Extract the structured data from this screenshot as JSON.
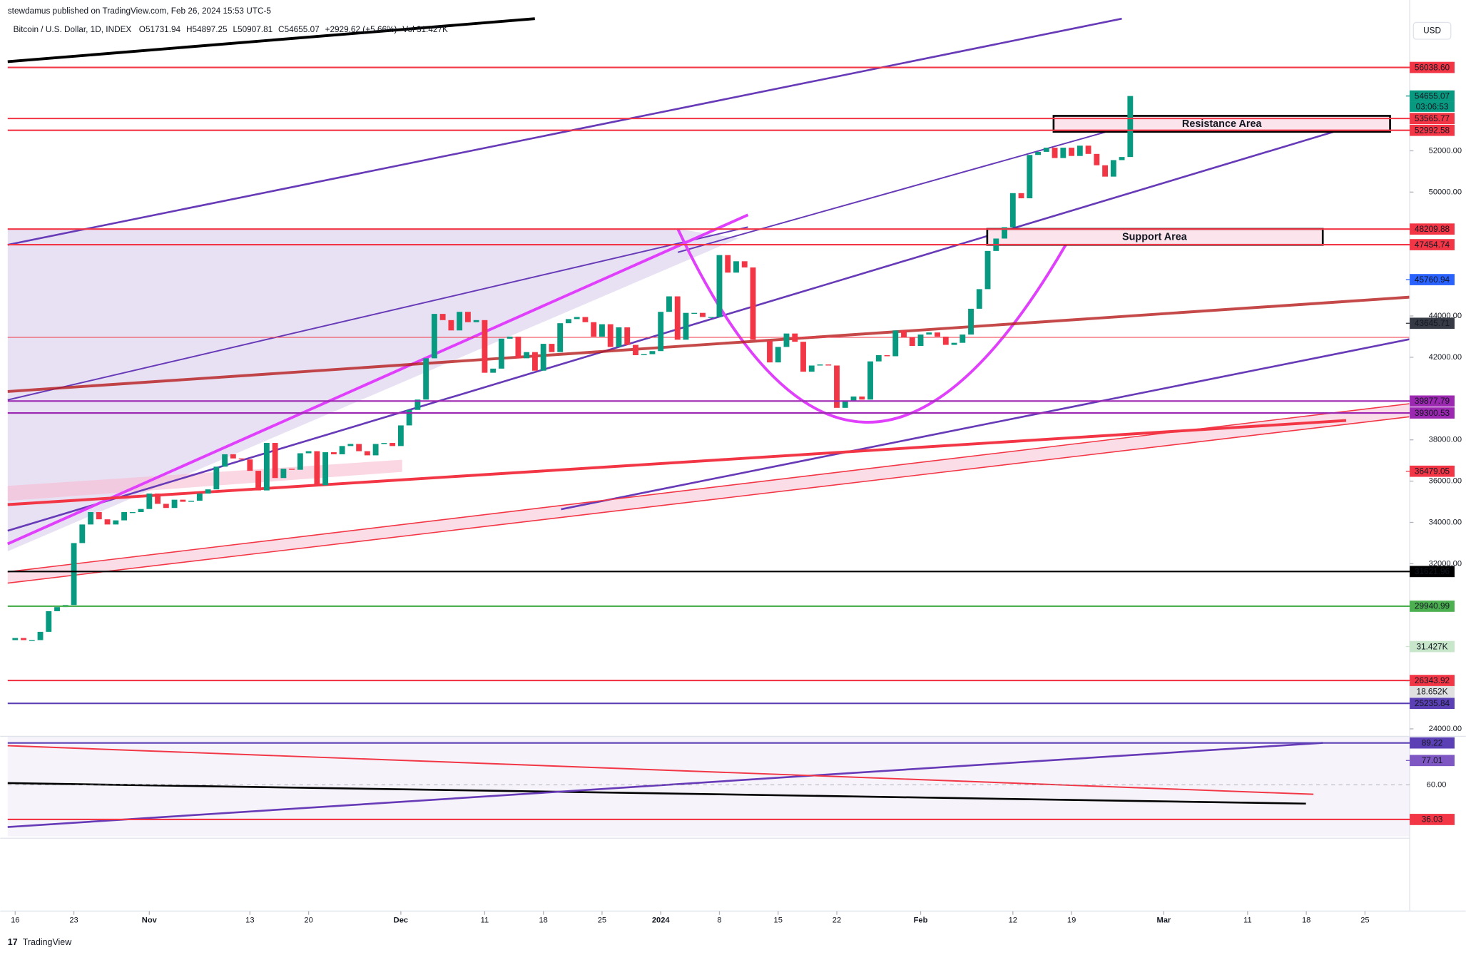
{
  "chart_data": {
    "type": "candlestick",
    "title": "stewdamus published on TradingView.com, Feb 26, 2024 15:53 UTC-5",
    "symbol": "Bitcoin / U.S. Dollar, 1D, INDEX",
    "ohlc": [
      "O51731.94",
      "H54897.25",
      "L50907.81",
      "C54655.07",
      "+2929.62 (+5.66%)",
      "Vol 31.427K"
    ],
    "currency": "USD",
    "annotations": [
      "Resistance Area",
      "Support Area"
    ],
    "countdown": "03:06:53",
    "brand": "TradingView",
    "up_color": "#089981",
    "down_color": "#f23645",
    "first_open": 28300,
    "closes": [
      28400,
      28300,
      28300,
      28700,
      29700,
      29900,
      30000,
      33000,
      33900,
      34500,
      34150,
      33900,
      34100,
      34500,
      34500,
      34650,
      35400,
      34900,
      34700,
      35100,
      35000,
      35050,
      35400,
      35600,
      36700,
      37300,
      37100,
      37050,
      36500,
      35550,
      37850,
      36150,
      36600,
      36550,
      37350,
      37450,
      35800,
      37400,
      37300,
      37700,
      37800,
      37450,
      37250,
      37800,
      37850,
      37700,
      38700,
      39450,
      39950,
      41950,
      44100,
      43800,
      43300,
      44200,
      43700,
      43800,
      41250,
      41450,
      42900,
      43000,
      41950,
      42250,
      41350,
      42650,
      42250,
      43650,
      43850,
      43950,
      43700,
      43000,
      43600,
      42500,
      43450,
      42600,
      42100,
      42150,
      42300,
      44200,
      44950,
      42850,
      44150,
      44150,
      43950,
      43950,
      46950,
      46100,
      46650,
      46350,
      42850,
      42800,
      41750,
      42500,
      43150,
      42750,
      41300,
      41600,
      41650,
      41600,
      39550,
      39900,
      40100,
      39950,
      41800,
      42100,
      42050,
      43300,
      42950,
      42550,
      43100,
      43200,
      43000,
      42600,
      42700,
      43100,
      44350,
      45300,
      47150,
      47750,
      48300,
      49950,
      49700,
      51800,
      51950,
      52150,
      51650,
      52150,
      51750,
      52250,
      51850,
      51300,
      50750,
      51550,
      51700,
      54655.07
    ],
    "ylim": [
      24000,
      58400
    ],
    "yticks": [
      {
        "value": 52000,
        "label": "52000.00"
      },
      {
        "value": 50000,
        "label": "50000.00"
      },
      {
        "value": 44000,
        "label": "44000.00"
      },
      {
        "value": 42000,
        "label": "42000.00"
      },
      {
        "value": 38000,
        "label": "38000.00"
      },
      {
        "value": 36000,
        "label": "36000.00"
      },
      {
        "value": 34000,
        "label": "34000.00"
      },
      {
        "value": 32000,
        "label": "32000.00"
      },
      {
        "value": 24000,
        "label": "24000.00"
      }
    ],
    "xticks": [
      {
        "value": 0,
        "label": "16"
      },
      {
        "value": 7,
        "label": "23"
      },
      {
        "value": 16,
        "label": "Nov"
      },
      {
        "value": 28,
        "label": "13"
      },
      {
        "value": 35,
        "label": "20"
      },
      {
        "value": 46,
        "label": "Dec"
      },
      {
        "value": 56,
        "label": "11"
      },
      {
        "value": 63,
        "label": "18"
      },
      {
        "value": 70,
        "label": "25"
      },
      {
        "value": 77,
        "label": "2024"
      },
      {
        "value": 84,
        "label": "8"
      },
      {
        "value": 91,
        "label": "15"
      },
      {
        "value": 98,
        "label": "22"
      },
      {
        "value": 108,
        "label": "Feb"
      },
      {
        "value": 119,
        "label": "12"
      },
      {
        "value": 126,
        "label": "19"
      },
      {
        "value": 137,
        "label": "Mar"
      },
      {
        "value": 147,
        "label": "11"
      },
      {
        "value": 154,
        "label": "18"
      },
      {
        "value": 161,
        "label": "25"
      }
    ],
    "levels": [
      {
        "value": 56038.6,
        "label": "56038.60",
        "color": "#f23645",
        "full_line": true
      },
      {
        "value": 54655.07,
        "label": "54655.07",
        "color": "#089981",
        "full_line": false
      },
      {
        "value": 53565.77,
        "label": "53565.77",
        "color": "#f23645",
        "full_line": true
      },
      {
        "value": 52992.58,
        "label": "52992.58",
        "color": "#f23645",
        "full_line": true
      },
      {
        "value": 48209.88,
        "label": "48209.88",
        "color": "#f23645",
        "full_line": true
      },
      {
        "value": 47454.74,
        "label": "47454.74",
        "color": "#f23645",
        "full_line": true
      },
      {
        "value": 45760.94,
        "label": "45760.94",
        "color": "#2962ff",
        "full_line": false
      },
      {
        "value": 43645.71,
        "label": "43645.71",
        "color": "#363a45",
        "full_line": false
      },
      {
        "value": 39877.79,
        "label": "39877.79",
        "color": "#9c27b0",
        "full_line": true
      },
      {
        "value": 39300.53,
        "label": "39300.53",
        "color": "#9c27b0",
        "full_line": true
      },
      {
        "value": 36479.05,
        "label": "36479.05",
        "color": "#f23645",
        "full_line": false
      },
      {
        "value": 31621.96,
        "label": "31621.96",
        "color": "#000000",
        "full_line": true
      },
      {
        "value": 29940.99,
        "label": "29940.99",
        "color": "#4caf50",
        "full_line": true
      },
      {
        "value": 26343.92,
        "label": "26343.92",
        "color": "#f23645",
        "full_line": true
      },
      {
        "value": 25235.84,
        "label": "25235.84",
        "color": "#5b3fb5",
        "full_line": true
      }
    ],
    "volume_levels": [
      {
        "value": 31427,
        "label": "31.427K",
        "color": "#c8e6c9"
      },
      {
        "value": 18652,
        "label": "18.652K",
        "color": "#e0e0e0"
      }
    ],
    "rsi_ylim": [
      24.3,
      93.8
    ],
    "rsi_ticks": [
      {
        "value": 60,
        "label": "60.00"
      }
    ],
    "rsi_levels": [
      {
        "value": 89.22,
        "label": "89.22",
        "color": "#5b3fb5",
        "full_line": true
      },
      {
        "value": 77.01,
        "label": "77.01",
        "color": "#7e57c2",
        "full_line": false
      },
      {
        "value": 36.03,
        "label": "36.03",
        "color": "#f23645",
        "full_line": true
      }
    ]
  }
}
